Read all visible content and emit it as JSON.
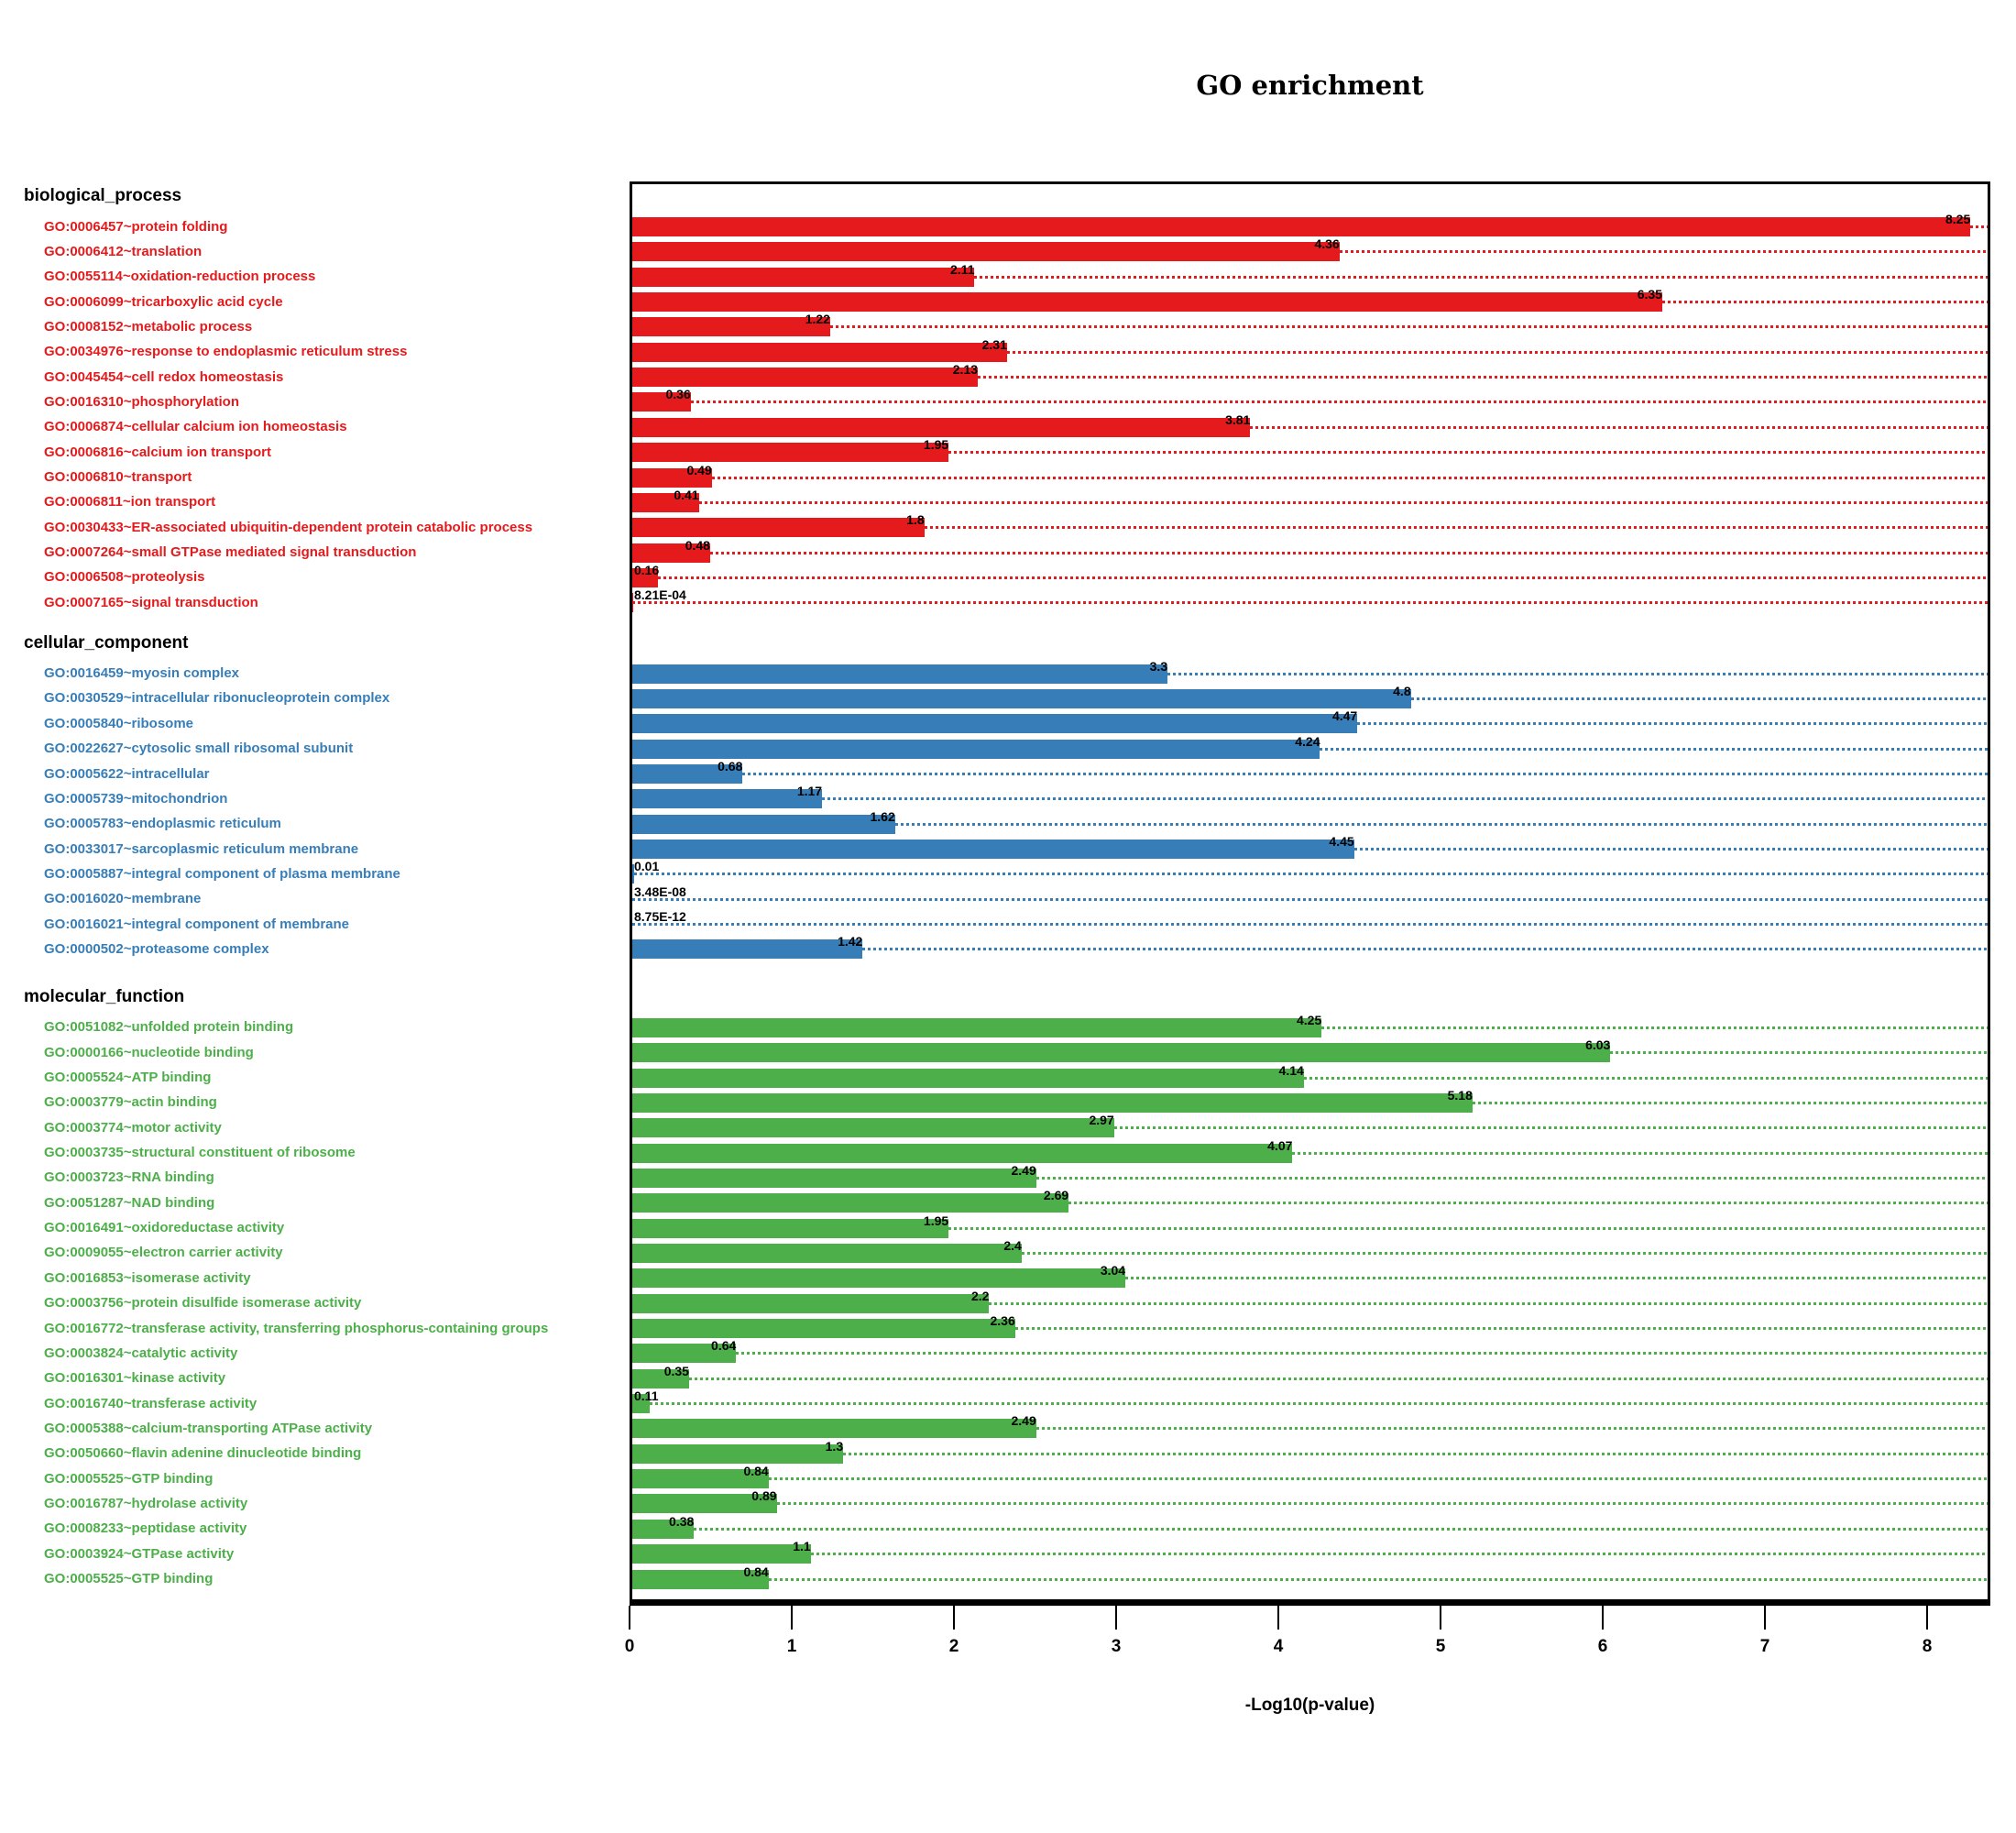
{
  "title": "GO enrichment",
  "x_axis": {
    "label": "-Log10(p-value)",
    "ticks": [
      "0",
      "1",
      "2",
      "3",
      "4",
      "5",
      "6",
      "7",
      "8"
    ]
  },
  "chart_data": {
    "type": "bar",
    "orientation": "horizontal",
    "title": "GO enrichment",
    "xlabel": "-Log10(p-value)",
    "xlim": [
      0,
      8.39
    ],
    "grid": "dotted leader line from each bar end to right frame edge, colored per section",
    "legend": "none",
    "sections": [
      {
        "name": "biological_process",
        "color": "#E41A1C",
        "items": [
          {
            "term": "GO:0006457~protein folding",
            "value": 8.25,
            "label": "8.25"
          },
          {
            "term": "GO:0006412~translation",
            "value": 4.36,
            "label": "4.36"
          },
          {
            "term": "GO:0055114~oxidation-reduction process",
            "value": 2.11,
            "label": "2.11"
          },
          {
            "term": "GO:0006099~tricarboxylic acid cycle",
            "value": 6.35,
            "label": "6.35"
          },
          {
            "term": "GO:0008152~metabolic process",
            "value": 1.22,
            "label": "1.22"
          },
          {
            "term": "GO:0034976~response to endoplasmic reticulum stress",
            "value": 2.31,
            "label": "2.31"
          },
          {
            "term": "GO:0045454~cell redox homeostasis",
            "value": 2.13,
            "label": "2.13"
          },
          {
            "term": "GO:0016310~phosphorylation",
            "value": 0.36,
            "label": "0.36"
          },
          {
            "term": "GO:0006874~cellular calcium ion homeostasis",
            "value": 3.81,
            "label": "3.81"
          },
          {
            "term": "GO:0006816~calcium ion transport",
            "value": 1.95,
            "label": "1.95"
          },
          {
            "term": "GO:0006810~transport",
            "value": 0.49,
            "label": "0.49"
          },
          {
            "term": "GO:0006811~ion transport",
            "value": 0.41,
            "label": "0.41"
          },
          {
            "term": "GO:0030433~ER-associated ubiquitin-dependent protein catabolic process",
            "value": 1.8,
            "label": "1.8"
          },
          {
            "term": "GO:0007264~small GTPase mediated signal transduction",
            "value": 0.48,
            "label": "0.48"
          },
          {
            "term": "GO:0006508~proteolysis",
            "value": 0.16,
            "label": "0.16"
          },
          {
            "term": "GO:0007165~signal transduction",
            "value": 0.000821,
            "label": "8.21E-04"
          }
        ]
      },
      {
        "name": "cellular_component",
        "color": "#377EB8",
        "items": [
          {
            "term": "GO:0016459~myosin complex",
            "value": 3.3,
            "label": "3.3"
          },
          {
            "term": "GO:0030529~intracellular ribonucleoprotein complex",
            "value": 4.8,
            "label": "4.8"
          },
          {
            "term": "GO:0005840~ribosome",
            "value": 4.47,
            "label": "4.47"
          },
          {
            "term": "GO:0022627~cytosolic small ribosomal subunit",
            "value": 4.24,
            "label": "4.24"
          },
          {
            "term": "GO:0005622~intracellular",
            "value": 0.68,
            "label": "0.68"
          },
          {
            "term": "GO:0005739~mitochondrion",
            "value": 1.17,
            "label": "1.17"
          },
          {
            "term": "GO:0005783~endoplasmic reticulum",
            "value": 1.62,
            "label": "1.62"
          },
          {
            "term": "GO:0033017~sarcoplasmic reticulum membrane",
            "value": 4.45,
            "label": "4.45"
          },
          {
            "term": "GO:0005887~integral component of plasma membrane",
            "value": 0.01,
            "label": "0.01"
          },
          {
            "term": "GO:0016020~membrane",
            "value": 3.48e-08,
            "label": "3.48E-08"
          },
          {
            "term": "GO:0016021~integral component of membrane",
            "value": 8.75e-12,
            "label": "8.75E-12"
          },
          {
            "term": "GO:0000502~proteasome complex",
            "value": 1.42,
            "label": "1.42"
          }
        ]
      },
      {
        "name": "molecular_function",
        "color": "#4DAF4A",
        "items": [
          {
            "term": "GO:0051082~unfolded protein binding",
            "value": 4.25,
            "label": "4.25"
          },
          {
            "term": "GO:0000166~nucleotide binding",
            "value": 6.03,
            "label": "6.03"
          },
          {
            "term": "GO:0005524~ATP binding",
            "value": 4.14,
            "label": "4.14"
          },
          {
            "term": "GO:0003779~actin binding",
            "value": 5.18,
            "label": "5.18"
          },
          {
            "term": "GO:0003774~motor activity",
            "value": 2.97,
            "label": "2.97"
          },
          {
            "term": "GO:0003735~structural constituent of ribosome",
            "value": 4.07,
            "label": "4.07"
          },
          {
            "term": "GO:0003723~RNA binding",
            "value": 2.49,
            "label": "2.49"
          },
          {
            "term": "GO:0051287~NAD binding",
            "value": 2.69,
            "label": "2.69"
          },
          {
            "term": "GO:0016491~oxidoreductase activity",
            "value": 1.95,
            "label": "1.95"
          },
          {
            "term": "GO:0009055~electron carrier activity",
            "value": 2.4,
            "label": "2.4"
          },
          {
            "term": "GO:0016853~isomerase activity",
            "value": 3.04,
            "label": "3.04"
          },
          {
            "term": "GO:0003756~protein disulfide isomerase activity",
            "value": 2.2,
            "label": "2.2"
          },
          {
            "term": "GO:0016772~transferase activity, transferring phosphorus-containing groups",
            "value": 2.36,
            "label": "2.36"
          },
          {
            "term": "GO:0003824~catalytic activity",
            "value": 0.64,
            "label": "0.64"
          },
          {
            "term": "GO:0016301~kinase activity",
            "value": 0.35,
            "label": "0.35"
          },
          {
            "term": "GO:0016740~transferase activity",
            "value": 0.11,
            "label": "0.11"
          },
          {
            "term": "GO:0005388~calcium-transporting ATPase activity",
            "value": 2.49,
            "label": "2.49"
          },
          {
            "term": "GO:0050660~flavin adenine dinucleotide binding",
            "value": 1.3,
            "label": "1.3"
          },
          {
            "term": "GO:0005525~GTP binding",
            "value": 0.84,
            "label": "0.84"
          },
          {
            "term": "GO:0016787~hydrolase activity",
            "value": 0.89,
            "label": "0.89"
          },
          {
            "term": "GO:0008233~peptidase activity",
            "value": 0.38,
            "label": "0.38"
          },
          {
            "term": "GO:0003924~GTPase activity",
            "value": 1.1,
            "label": "1.1"
          },
          {
            "term": "GO:0005525~GTP binding",
            "value": 0.84,
            "label": "0.84"
          }
        ]
      }
    ]
  }
}
